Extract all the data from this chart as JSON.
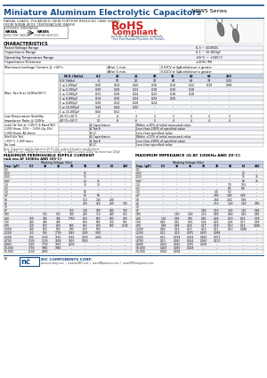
{
  "title": "Miniature Aluminum Electrolytic Capacitors",
  "series": "NRWS Series",
  "subtitle1": "RADIAL LEADS, POLARIZED, NEW FURTHER REDUCED CASE SIZING,",
  "subtitle2": "FROM NRWA WIDE TEMPERATURE RANGE",
  "rohs_line1": "RoHS",
  "rohs_line2": "Compliant",
  "rohs_sub": "Includes all homogeneous materials",
  "rohs_sub2": "*See Part Number System for Details",
  "ext_temp_label": "EXTENDED TEMPERATURE",
  "nrwa_label": "NRWA",
  "nrws_label": "NRWS",
  "nrwa_sub": "(WIDE TEMP. RANGE)",
  "nrws_sub": "(FURTHER REDUCED)",
  "char_title": "CHARACTERISTICS",
  "char_rows": [
    [
      "Rated Voltage Range",
      "6.3 ~ 100VDC"
    ],
    [
      "Capacitance Range",
      "0.1 ~ 15,000μF"
    ],
    [
      "Operating Temperature Range",
      "-55°C ~ +105°C"
    ],
    [
      "Capacitance Tolerance",
      "±20% (M)"
    ]
  ],
  "leakage_label": "Maximum Leakage Current @ +20°c",
  "leakage_row1": "After 1 min.",
  "leakage_row2": "After 5 min.",
  "leakage_val1": "0.03CV or 4μA whichever is greater",
  "leakage_val2": "0.01CV or 3μA whichever is greater",
  "tand_label": "Max. Tan δ at 120Hz/20°C",
  "tand_header": [
    "W.V. (Volts)",
    "6.3",
    "10",
    "16",
    "25",
    "35",
    "50",
    "63",
    "100"
  ],
  "tand_sv": [
    "S.V. (Volts)",
    "4",
    "10",
    "20",
    "32",
    "44",
    "63",
    "79",
    "1.25"
  ],
  "tand_rows": [
    [
      "C ≤ 1,000μF",
      "0.26",
      "0.24",
      "0.20",
      "0.16",
      "0.14",
      "0.12",
      "0.10",
      "0.08"
    ],
    [
      "C ≤ 2,200μF",
      "0.30",
      "0.28",
      "0.22",
      "0.18",
      "0.16",
      "0.18",
      "-",
      "-"
    ],
    [
      "C ≤ 3,300μF",
      "0.33",
      "0.28",
      "0.24",
      "0.22",
      "0.18",
      "0.18",
      "-",
      "-"
    ],
    [
      "C ≤ 6,800μF",
      "0.34",
      "0.30",
      "0.24",
      "0.20",
      "0.20",
      "-",
      "-",
      "-"
    ],
    [
      "C ≤ 8,800μF",
      "0.36",
      "0.34",
      "0.28",
      "0.24",
      "-",
      "-",
      "-",
      "-"
    ],
    [
      "C ≤ 10,000μF",
      "0.44",
      "0.44",
      "0.30",
      "-",
      "-",
      "-",
      "-",
      "-"
    ],
    [
      "C ≤ 15,000μF",
      "0.56",
      "0.52",
      "-",
      "-",
      "-",
      "-",
      "-",
      "-"
    ]
  ],
  "lowtemp_label": "Low Temperature Stability\nImpedance Ratio @ 120Hz",
  "lowtemp_rows": [
    [
      "-25°C/+20°C",
      "2",
      "4",
      "3",
      "2",
      "2",
      "2",
      "2",
      "2"
    ],
    [
      "-40°C/+20°C",
      "12",
      "8",
      "6",
      "5",
      "4",
      "4",
      "4",
      "4"
    ]
  ],
  "loadlife_label": "Load Life Test at +105°C & Rated W.V.\n2,000 Hours, 10% ~ 100% Qty 15H,\n1,000 Hours, All others",
  "loadlife_rows": [
    [
      "Δ Capacitance",
      "Within ±20% of initial measured value"
    ],
    [
      "Δ Tan δ",
      "Less than 200% of specified value"
    ],
    [
      "Δ LC",
      "Less than specified value"
    ]
  ],
  "shelf_label": "Shelf Life Test\n+105°C, 1,000 hours\nNo Load",
  "shelf_rows": [
    [
      "Δ Capacitance",
      "Within ±15% of initial measured value"
    ],
    [
      "Δ Tan δ",
      "Less than 200% of specified value"
    ],
    [
      "Δ LC",
      "Less than specified value"
    ]
  ],
  "note1": "Note: Capacitors shall be biased to 25-0.1 V/h, unless otherwise specified here.",
  "note2": "*1. Add 0.6 every 1000μF for more than 1000μF  *2. Add 0.1 every 1000μF for more than 100μF",
  "ripple_title": "MAXIMUM PERMISSIBLE RIPPLE CURRENT",
  "ripple_subtitle": "(mA rms AT 100KHz AND 105°C)",
  "imped_title": "MAXIMUM IMPEDANCE (Ω AT 100KHz AND 20°C)",
  "wv_header": [
    "6.3",
    "10",
    "16",
    "25",
    "35",
    "50",
    "63",
    "100"
  ],
  "cap_col_label": "Cap. (μF)",
  "wv_col_label": "Working Voltage (Vdc)",
  "ripple_data": [
    [
      "0.1",
      "-",
      "-",
      "-",
      "-",
      "-",
      "-",
      "-",
      "-"
    ],
    [
      "0.22",
      "-",
      "-",
      "-",
      "-",
      "15",
      "-",
      "-",
      "-"
    ],
    [
      "0.33",
      "-",
      "-",
      "-",
      "-",
      "15",
      "-",
      "-",
      "-"
    ],
    [
      "0.47",
      "-",
      "-",
      "-",
      "-",
      "20",
      "15",
      "-",
      "-"
    ],
    [
      "1.0",
      "-",
      "-",
      "-",
      "-",
      "30",
      "30",
      "-",
      "-"
    ],
    [
      "2.2",
      "-",
      "-",
      "-",
      "-",
      "-",
      "-",
      "-",
      "-"
    ],
    [
      "3.3",
      "-",
      "-",
      "-",
      "-",
      "50",
      "-",
      "-",
      "-"
    ],
    [
      "4.7",
      "-",
      "-",
      "-",
      "-",
      "80",
      "56",
      "-",
      "-"
    ],
    [
      "10",
      "-",
      "-",
      "-",
      "-",
      "110",
      "140",
      "230",
      "-"
    ],
    [
      "22",
      "-",
      "-",
      "-",
      "-",
      "120",
      "120",
      "200",
      "300"
    ],
    [
      "33",
      "-",
      "-",
      "-",
      "-",
      "-",
      "-",
      "-",
      "-"
    ],
    [
      "47",
      "-",
      "-",
      "-",
      "150",
      "140",
      "180",
      "240",
      "330"
    ],
    [
      "100",
      "-",
      "150",
      "150",
      "340",
      "280",
      "310",
      "440",
      "450"
    ],
    [
      "220",
      "160",
      "340",
      "340",
      "1780",
      "860",
      "560",
      "500",
      "700"
    ],
    [
      "330",
      "240",
      "440",
      "440",
      "-",
      "860",
      "560",
      "760",
      "900"
    ],
    [
      "470",
      "200",
      "570",
      "800",
      "560",
      "650",
      "800",
      "960",
      "1100"
    ],
    [
      "1,000",
      "480",
      "650",
      "900",
      "900",
      "850",
      "900",
      "-",
      "-"
    ],
    [
      "2,200",
      "750",
      "900",
      "1700",
      "1920",
      "1400",
      "1650",
      "-",
      "-"
    ],
    [
      "3,300",
      "900",
      "1100",
      "1520",
      "1560",
      "1600",
      "2000",
      "-",
      "-"
    ],
    [
      "4,700",
      "1100",
      "1100",
      "1800",
      "1900",
      "1800",
      "-",
      "-",
      "-"
    ],
    [
      "6,800",
      "1400",
      "1700",
      "1900",
      "2200",
      "-",
      "-",
      "-",
      "-"
    ],
    [
      "10,000",
      "1700",
      "1980",
      "1980",
      "-",
      "-",
      "-",
      "-",
      "-"
    ],
    [
      "15,000",
      "2100",
      "2400",
      "-",
      "-",
      "-",
      "-",
      "-",
      "-"
    ]
  ],
  "imped_data": [
    [
      "0.1",
      "-",
      "-",
      "-",
      "-",
      "-",
      "-",
      "-",
      "-"
    ],
    [
      "0.22",
      "-",
      "-",
      "-",
      "-",
      "-",
      "-",
      "20",
      "-"
    ],
    [
      "0.33",
      "-",
      "-",
      "-",
      "-",
      "-",
      "-",
      "15",
      "15"
    ],
    [
      "0.47",
      "-",
      "-",
      "-",
      "-",
      "-",
      "-",
      "50",
      "15"
    ],
    [
      "1.0",
      "-",
      "-",
      "-",
      "-",
      "-",
      "7.0",
      "10.5",
      "-"
    ],
    [
      "2.2",
      "-",
      "-",
      "-",
      "-",
      "-",
      "6.5",
      "6.8",
      "-"
    ],
    [
      "3.3",
      "-",
      "-",
      "-",
      "-",
      "4.0",
      "5.0",
      "-",
      "-"
    ],
    [
      "4.7",
      "-",
      "-",
      "-",
      "-",
      "2.80",
      "2.80",
      "4.00",
      "-"
    ],
    [
      "10",
      "-",
      "-",
      "-",
      "-",
      "2.60",
      "2.40",
      "0.93",
      "-"
    ],
    [
      "22",
      "-",
      "-",
      "-",
      "-",
      "2.10",
      "1.40",
      "1.40",
      "0.83"
    ],
    [
      "33",
      "-",
      "-",
      "-",
      "-",
      "-",
      "-",
      "-",
      "-"
    ],
    [
      "47",
      "-",
      "-",
      "-",
      "1.80",
      "2.10",
      "1.50",
      "1.50",
      "0.94"
    ],
    [
      "100",
      "-",
      "1.60",
      "1.60",
      "1.10",
      "0.80",
      "0.60",
      "0.50",
      "0.90"
    ],
    [
      "220",
      "1.45",
      "0.58",
      "0.55",
      "0.59",
      "0.46",
      "0.20",
      "0.22",
      "0.18"
    ],
    [
      "330",
      "0.80",
      "0.55",
      "0.54",
      "0.34",
      "0.28",
      "0.24",
      "0.17",
      "0.09"
    ],
    [
      "470",
      "0.58",
      "0.58",
      "0.28",
      "0.17",
      "0.18",
      "0.13",
      "0.14",
      "0.085"
    ],
    [
      "1,000",
      "0.60",
      "0.14",
      "0.10",
      "0.10",
      "0.11",
      "0.13",
      "0.085",
      "-"
    ],
    [
      "2,200",
      "0.12",
      "0.10",
      "0.075",
      "0.075",
      "0.068",
      "-",
      "-",
      "-"
    ],
    [
      "3,300",
      "0.10",
      "0.078",
      "0.054",
      "0.043",
      "0.073",
      "-",
      "-",
      "-"
    ],
    [
      "4,700",
      "0.10",
      "0.055",
      "0.054",
      "0.040",
      "0.200",
      "-",
      "-",
      "-"
    ],
    [
      "6,800",
      "0.054",
      "0.040",
      "0.035",
      "0.028",
      "-",
      "-",
      "-",
      "-"
    ],
    [
      "10,000",
      "0.043",
      "0.040",
      "0.028",
      "-",
      "-",
      "-",
      "-",
      "-"
    ],
    [
      "15,000",
      "0.054",
      "0.008",
      "-",
      "-",
      "-",
      "-",
      "-",
      "-"
    ]
  ],
  "page_num": "72",
  "company": "NIC COMPONENTS CORP.",
  "website": "www.niccomp.com  |  www.bellSPI.com  |  www.NRpassives.com  |  www.SMTmagnetics.com",
  "bg_color": "#ffffff",
  "header_blue": "#1a4f8a",
  "table_header_bg": "#c8d4e8",
  "alt_row_bg": "#eef2f8",
  "border_color": "#999999",
  "text_color": "#000000"
}
